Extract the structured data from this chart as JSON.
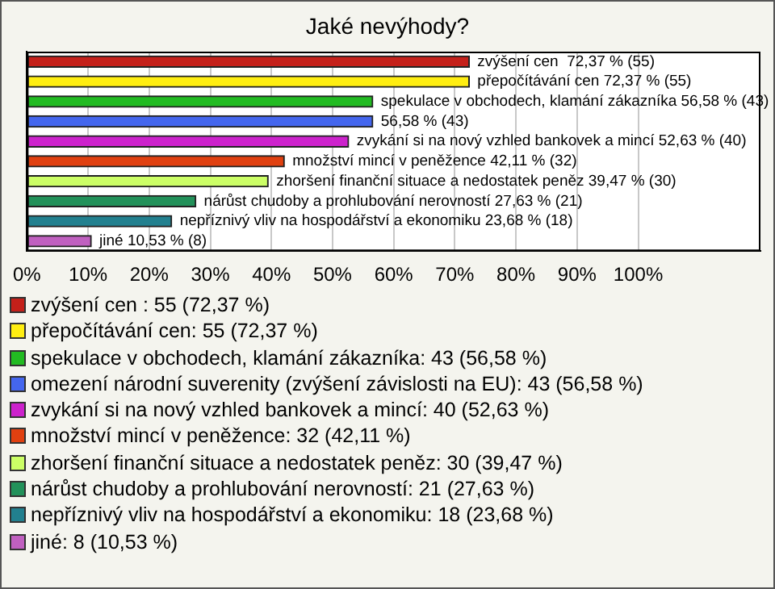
{
  "chart_data": {
    "type": "bar",
    "orientation": "horizontal",
    "title": "Jaké nevýhody?",
    "categories": [
      null,
      null,
      null,
      null,
      null,
      null,
      null,
      null,
      null,
      null
    ],
    "series": [
      {
        "name": "zvýšení cen : 55 (72,37 %)",
        "color": "#c4201a",
        "values": [
          72.37,
          null,
          null,
          null,
          null,
          null,
          null,
          null,
          null,
          null
        ],
        "value_labels": [
          "zvýšení cen  72,37 % (55)",
          null,
          null,
          null,
          null,
          null,
          null,
          null,
          null,
          null
        ]
      },
      {
        "name": "přepočítávání cen: 55 (72,37 %)",
        "color": "#ffee11",
        "values": [
          null,
          72.37,
          null,
          null,
          null,
          null,
          null,
          null,
          null,
          null
        ],
        "value_labels": [
          null,
          "přepočítávání cen 72,37 % (55)",
          null,
          null,
          null,
          null,
          null,
          null,
          null,
          null
        ]
      },
      {
        "name": "spekulace v obchodech, klamání zákazníka: 43 (56,58 %)",
        "color": "#22bb22",
        "values": [
          null,
          null,
          56.58,
          null,
          null,
          null,
          null,
          null,
          null,
          null
        ],
        "value_labels": [
          null,
          null,
          "spekulace v obchodech, klamání zákazníka 56,58 % (43)",
          null,
          null,
          null,
          null,
          null,
          null,
          null
        ]
      },
      {
        "name": "omezení národní suverenity (zvýšení závislosti na EU): 43 (56,58 %)",
        "color": "#4466ee",
        "values": [
          null,
          null,
          null,
          56.58,
          null,
          null,
          null,
          null,
          null,
          null
        ],
        "value_labels": [
          null,
          null,
          null,
          "56,58 % (43)",
          null,
          null,
          null,
          null,
          null,
          null
        ]
      },
      {
        "name": "zvykání si na nový vzhled bankovek a mincí: 40 (52,63 %)",
        "color": "#cc22cc",
        "values": [
          null,
          null,
          null,
          null,
          52.63,
          null,
          null,
          null,
          null,
          null
        ],
        "value_labels": [
          null,
          null,
          null,
          null,
          "zvykání si na nový vzhled bankovek a mincí 52,63 % (40)",
          null,
          null,
          null,
          null,
          null
        ]
      },
      {
        "name": "množství mincí v peněžence: 32 (42,11 %)",
        "color": "#e04010",
        "values": [
          null,
          null,
          null,
          null,
          null,
          42.11,
          null,
          null,
          null,
          null
        ],
        "value_labels": [
          null,
          null,
          null,
          null,
          null,
          "množství mincí v peněžence 42,11 % (32)",
          null,
          null,
          null,
          null
        ]
      },
      {
        "name": "zhoršení finanční situace a nedostatek peněz: 30 (39,47 %)",
        "color": "#ccff66",
        "values": [
          null,
          null,
          null,
          null,
          null,
          null,
          39.47,
          null,
          null,
          null
        ],
        "value_labels": [
          null,
          null,
          null,
          null,
          null,
          null,
          "zhoršení finanční situace a nedostatek peněz 39,47 % (30)",
          null,
          null,
          null
        ]
      },
      {
        "name": "nárůst chudoby a prohlubování nerovností: 21 (27,63 %)",
        "color": "#22915a",
        "values": [
          null,
          null,
          null,
          null,
          null,
          null,
          null,
          27.63,
          null,
          null
        ],
        "value_labels": [
          null,
          null,
          null,
          null,
          null,
          null,
          null,
          "nárůst chudoby a prohlubování nerovností 27,63 % (21)",
          null,
          null
        ]
      },
      {
        "name": "nepříznivý vliv na hospodářství a ekonomiku: 18 (23,68 %)",
        "color": "#22808f",
        "values": [
          null,
          null,
          null,
          null,
          null,
          null,
          null,
          null,
          23.68,
          null
        ],
        "value_labels": [
          null,
          null,
          null,
          null,
          null,
          null,
          null,
          null,
          "nepříznivý vliv na hospodářství a ekonomiku 23,68 % (18)",
          null
        ]
      },
      {
        "name": "jiné: 8 (10,53 %)",
        "color": "#c060c0",
        "values": [
          null,
          null,
          null,
          null,
          null,
          null,
          null,
          null,
          null,
          10.53
        ],
        "value_labels": [
          null,
          null,
          null,
          null,
          null,
          null,
          null,
          null,
          null,
          "jiné 10,53 % (8)"
        ]
      }
    ],
    "xlim": [
      0,
      120
    ],
    "xticks": [
      {
        "value": 0,
        "label": "0%"
      },
      {
        "value": 10,
        "label": "10%"
      },
      {
        "value": 20,
        "label": "20%"
      },
      {
        "value": 30,
        "label": "30%"
      },
      {
        "value": 40,
        "label": "40%"
      },
      {
        "value": 50,
        "label": "50%"
      },
      {
        "value": 60,
        "label": "60%"
      },
      {
        "value": 70,
        "label": "70%"
      },
      {
        "value": 80,
        "label": "80%"
      },
      {
        "value": 90,
        "label": "90%"
      },
      {
        "value": 100,
        "label": "100%"
      }
    ],
    "grid": "x",
    "legend": "bottom",
    "tick_labels": "x"
  }
}
